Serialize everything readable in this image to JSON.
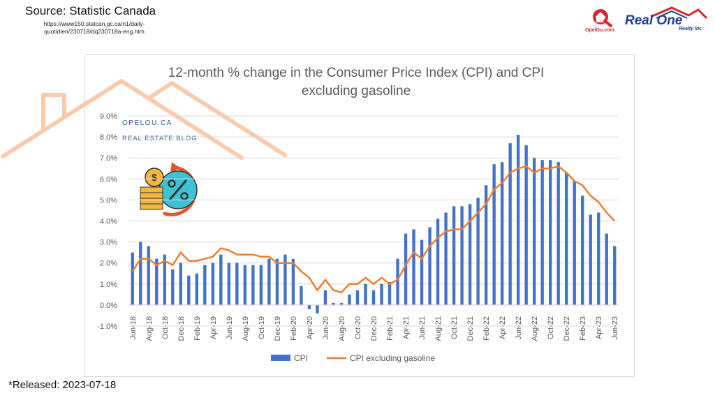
{
  "header": {
    "source": "Source: Statistic Canada",
    "url": "https://www150.statcan.gc.ca/n1/daily-quotidien/230718/dq230718a-eng.htm",
    "released": "*Released: 2023-07-18"
  },
  "watermark": {
    "line1": "OPELOU.CA",
    "line2": "REAL ESTATE BLOG"
  },
  "logos": {
    "opelou": "OpelOu.com",
    "realone": "Real One",
    "realty": "Realty Inc"
  },
  "colors": {
    "bar": "#4472c4",
    "line": "#ed7d31",
    "house": "#f8cbad"
  },
  "chart_data": {
    "type": "bar",
    "title": "12-month % change in the Consumer Price Index (CPI) and CPI excluding gasoline",
    "xlabel": "",
    "ylabel": "",
    "ylim": [
      -1.0,
      9.0
    ],
    "yticks": [
      "-1.0%",
      "0.0%",
      "1.0%",
      "2.0%",
      "3.0%",
      "4.0%",
      "5.0%",
      "6.0%",
      "7.0%",
      "8.0%",
      "9.0%"
    ],
    "grid": true,
    "legend": "bottom",
    "x": [
      "Jun-18",
      "Jul-18",
      "Aug-18",
      "Sep-18",
      "Oct-18",
      "Nov-18",
      "Dec-18",
      "Jan-19",
      "Feb-19",
      "Mar-19",
      "Apr-19",
      "May-19",
      "Jun-19",
      "Jul-19",
      "Aug-19",
      "Sep-19",
      "Oct-19",
      "Nov-19",
      "Dec-19",
      "Jan-20",
      "Feb-20",
      "Mar-20",
      "Apr-20",
      "May-20",
      "Jun-20",
      "Jul-20",
      "Aug-20",
      "Sep-20",
      "Oct-20",
      "Nov-20",
      "Dec-20",
      "Jan-21",
      "Feb-21",
      "Mar-21",
      "Apr-21",
      "May-21",
      "Jun-21",
      "Jul-21",
      "Aug-21",
      "Sep-21",
      "Oct-21",
      "Nov-21",
      "Dec-21",
      "Jan-22",
      "Feb-22",
      "Mar-22",
      "Apr-22",
      "May-22",
      "Jun-22",
      "Jul-22",
      "Aug-22",
      "Sep-22",
      "Oct-22",
      "Nov-22",
      "Dec-22",
      "Jan-23",
      "Feb-23",
      "Mar-23",
      "Apr-23",
      "May-23",
      "Jun-23"
    ],
    "xtick_labels": [
      "Jun-18",
      "Aug-18",
      "Oct-18",
      "Dec-18",
      "Feb-19",
      "Apr-19",
      "Jun-19",
      "Aug-19",
      "Oct-19",
      "Dec-19",
      "Feb-20",
      "Apr-20",
      "Jun-20",
      "Aug-20",
      "Oct-20",
      "Dec-20",
      "Feb-21",
      "Apr-21",
      "Jun-21",
      "Aug-21",
      "Oct-21",
      "Dec-21",
      "Feb-22",
      "Apr-22",
      "Jun-22",
      "Aug-22",
      "Oct-22",
      "Dec-22",
      "Feb-23",
      "Apr-23",
      "Jun-23"
    ],
    "series": [
      {
        "name": "CPI",
        "type": "bar",
        "values": [
          2.5,
          3.0,
          2.8,
          2.2,
          2.4,
          1.7,
          2.0,
          1.4,
          1.5,
          1.9,
          2.0,
          2.4,
          2.0,
          2.0,
          1.9,
          1.9,
          1.9,
          2.2,
          2.2,
          2.4,
          2.2,
          0.9,
          -0.2,
          -0.4,
          0.7,
          0.1,
          0.1,
          0.5,
          0.7,
          1.0,
          0.7,
          1.0,
          1.1,
          2.2,
          3.4,
          3.6,
          3.1,
          3.7,
          4.1,
          4.4,
          4.7,
          4.7,
          4.8,
          5.1,
          5.7,
          6.7,
          6.8,
          7.7,
          8.1,
          7.6,
          7.0,
          6.9,
          6.9,
          6.8,
          6.3,
          5.9,
          5.2,
          4.3,
          4.4,
          3.4,
          2.8
        ]
      },
      {
        "name": "CPI excluding gasoline",
        "type": "line",
        "values": [
          1.6,
          2.2,
          2.2,
          1.9,
          2.1,
          1.9,
          2.5,
          2.1,
          2.1,
          2.2,
          2.3,
          2.7,
          2.6,
          2.4,
          2.4,
          2.4,
          2.3,
          2.3,
          2.0,
          2.0,
          2.0,
          1.6,
          1.3,
          0.7,
          1.2,
          0.7,
          0.6,
          1.0,
          1.0,
          1.3,
          1.0,
          1.3,
          1.0,
          1.2,
          1.9,
          2.5,
          2.2,
          2.8,
          3.2,
          3.5,
          3.6,
          3.6,
          4.0,
          4.4,
          4.8,
          5.5,
          5.8,
          6.3,
          6.5,
          6.6,
          6.3,
          6.5,
          6.5,
          6.6,
          6.3,
          5.9,
          5.7,
          5.2,
          4.9,
          4.4,
          4.0
        ]
      }
    ]
  }
}
